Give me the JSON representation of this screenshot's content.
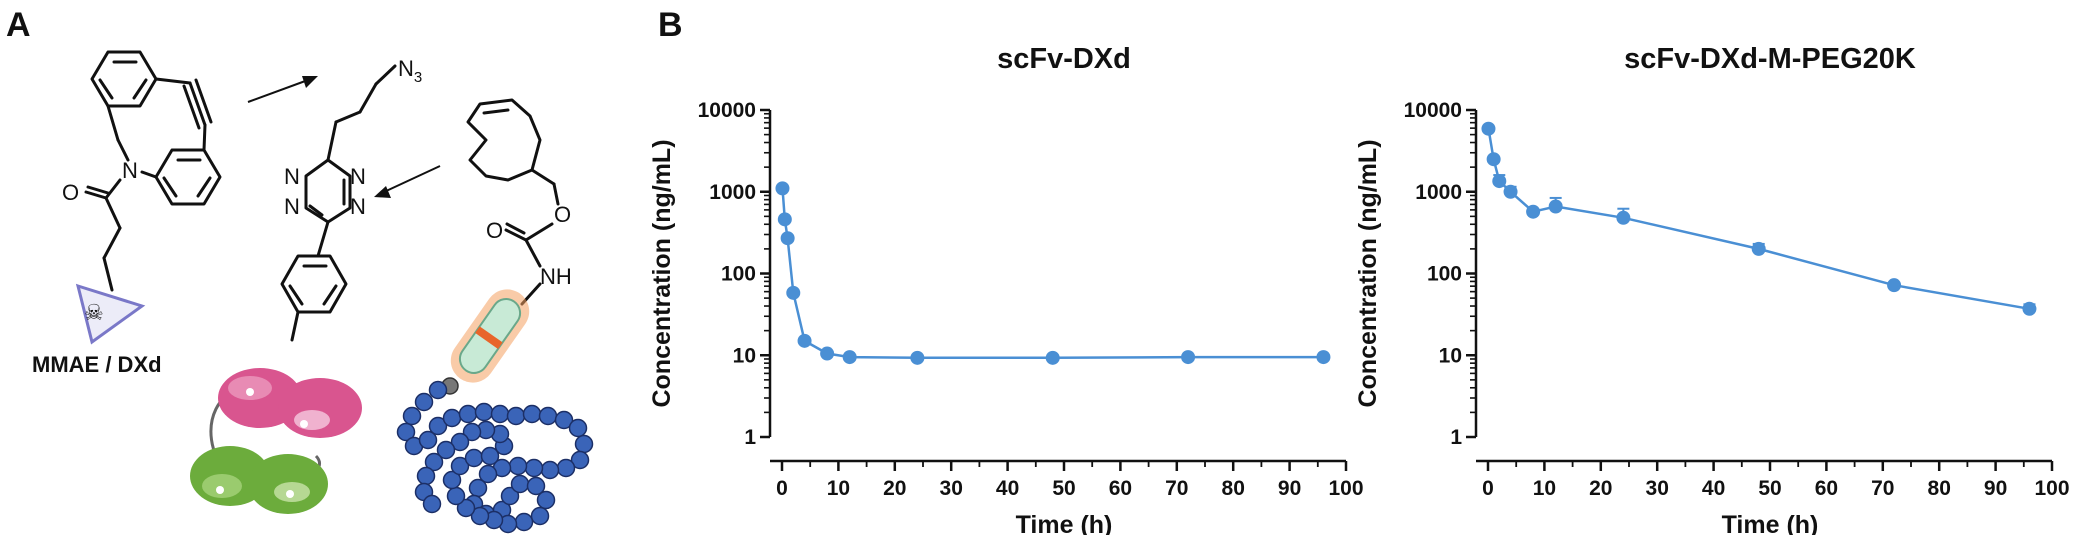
{
  "panels": {
    "a": {
      "letter": "A",
      "drug_label": "MMAE / DXd",
      "atoms": {
        "n": "N",
        "o": "O",
        "nh": "NH",
        "n3_main": "N",
        "n3_sub": "3"
      }
    },
    "b": {
      "letter": "B"
    }
  },
  "colors": {
    "series": "#4a8fd4",
    "axis": "#111111",
    "pink": "#d9558f",
    "green": "#6cac3c",
    "bead": "#3a64b8",
    "linker_glow": "#f4a161",
    "linker_fill": "#c8ead6",
    "linker_band": "#e8652a",
    "triangle": "#7a78c8"
  },
  "chart_data": [
    {
      "type": "line",
      "title": "scFv-DXd",
      "xlabel": "Time (h)",
      "ylabel": "Concentration (ng/mL)",
      "yscale": "log",
      "xlim": [
        0,
        100
      ],
      "ylim": [
        1,
        10000
      ],
      "xticks": [
        "0",
        "10",
        "20",
        "30",
        "40",
        "50",
        "60",
        "70",
        "80",
        "90",
        "100"
      ],
      "yticks": [
        "1",
        "10",
        "100",
        "1000",
        "10000"
      ],
      "grid": false,
      "series": [
        {
          "x": [
            0.083,
            0.5,
            1,
            2,
            4,
            8,
            12,
            24,
            48,
            72,
            96
          ],
          "y": [
            1100,
            460,
            270,
            58,
            15,
            10.5,
            9.5,
            9.3,
            9.3,
            9.5,
            9.5
          ],
          "err": [
            0,
            0,
            0,
            0,
            0,
            0,
            0,
            0,
            0,
            0,
            0
          ]
        }
      ]
    },
    {
      "type": "line",
      "title": "scFv-DXd-M-PEG20K",
      "xlabel": "Time (h)",
      "ylabel": "Concentration (ng/mL)",
      "yscale": "log",
      "xlim": [
        0,
        100
      ],
      "ylim": [
        1,
        10000
      ],
      "xticks": [
        "0",
        "10",
        "20",
        "30",
        "40",
        "50",
        "60",
        "70",
        "80",
        "90",
        "100"
      ],
      "yticks": [
        "1",
        "10",
        "100",
        "1000",
        "10000"
      ],
      "grid": false,
      "series": [
        {
          "x": [
            0.083,
            1,
            2,
            4,
            8,
            12,
            24,
            48,
            72,
            96
          ],
          "y": [
            5900,
            2500,
            1350,
            1000,
            570,
            660,
            480,
            200,
            72,
            37
          ],
          "err": [
            0,
            0,
            250,
            150,
            0,
            180,
            140,
            30,
            0,
            5
          ]
        }
      ]
    }
  ]
}
